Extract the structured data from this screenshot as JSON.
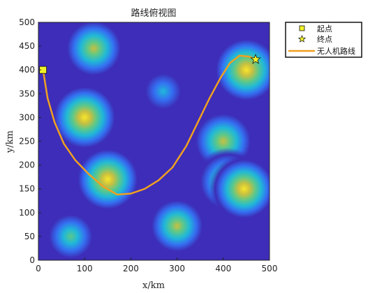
{
  "chart_data": {
    "type": "heatmap",
    "title": "路线俯视图",
    "xlabel": "x/km",
    "ylabel": "y/km",
    "xlim": [
      0,
      500
    ],
    "ylim": [
      0,
      500
    ],
    "xticks": [
      0,
      100,
      200,
      300,
      400,
      500
    ],
    "yticks": [
      0,
      50,
      100,
      150,
      200,
      250,
      300,
      350,
      400,
      450,
      500
    ],
    "grid": false,
    "legend_position": "outside-top-right",
    "background_color": "#3d2db8",
    "colormap": [
      "#3d2db8",
      "#3470f2",
      "#20b8d8",
      "#5cc88a",
      "#c8c040",
      "#f8e62c"
    ],
    "peaks": [
      {
        "x": 120,
        "y": 445,
        "intensity": 0.8
      },
      {
        "x": 100,
        "y": 300,
        "intensity": 1.0
      },
      {
        "x": 270,
        "y": 355,
        "intensity": 0.35
      },
      {
        "x": 150,
        "y": 170,
        "intensity": 0.95
      },
      {
        "x": 70,
        "y": 50,
        "intensity": 0.5
      },
      {
        "x": 300,
        "y": 72,
        "intensity": 0.7
      },
      {
        "x": 400,
        "y": 250,
        "intensity": 0.85
      },
      {
        "x": 450,
        "y": 400,
        "intensity": 1.0
      },
      {
        "x": 410,
        "y": 165,
        "intensity": 0.85
      },
      {
        "x": 445,
        "y": 150,
        "intensity": 0.9
      }
    ],
    "series": [
      {
        "name": "起点",
        "type": "marker",
        "marker": "square",
        "color": "#f2f22a",
        "points": [
          [
            10,
            400
          ]
        ]
      },
      {
        "name": "终点",
        "type": "marker",
        "marker": "star",
        "color": "#f2f22a",
        "points": [
          [
            470,
            422
          ]
        ]
      },
      {
        "name": "无人机路线",
        "type": "line",
        "color": "#f0a020",
        "points": [
          [
            10,
            400
          ],
          [
            20,
            340
          ],
          [
            35,
            290
          ],
          [
            55,
            245
          ],
          [
            80,
            210
          ],
          [
            110,
            180
          ],
          [
            140,
            155
          ],
          [
            170,
            138
          ],
          [
            200,
            140
          ],
          [
            230,
            150
          ],
          [
            260,
            168
          ],
          [
            290,
            195
          ],
          [
            320,
            240
          ],
          [
            345,
            290
          ],
          [
            370,
            340
          ],
          [
            395,
            385
          ],
          [
            415,
            415
          ],
          [
            435,
            430
          ],
          [
            455,
            428
          ],
          [
            470,
            422
          ]
        ]
      }
    ]
  }
}
